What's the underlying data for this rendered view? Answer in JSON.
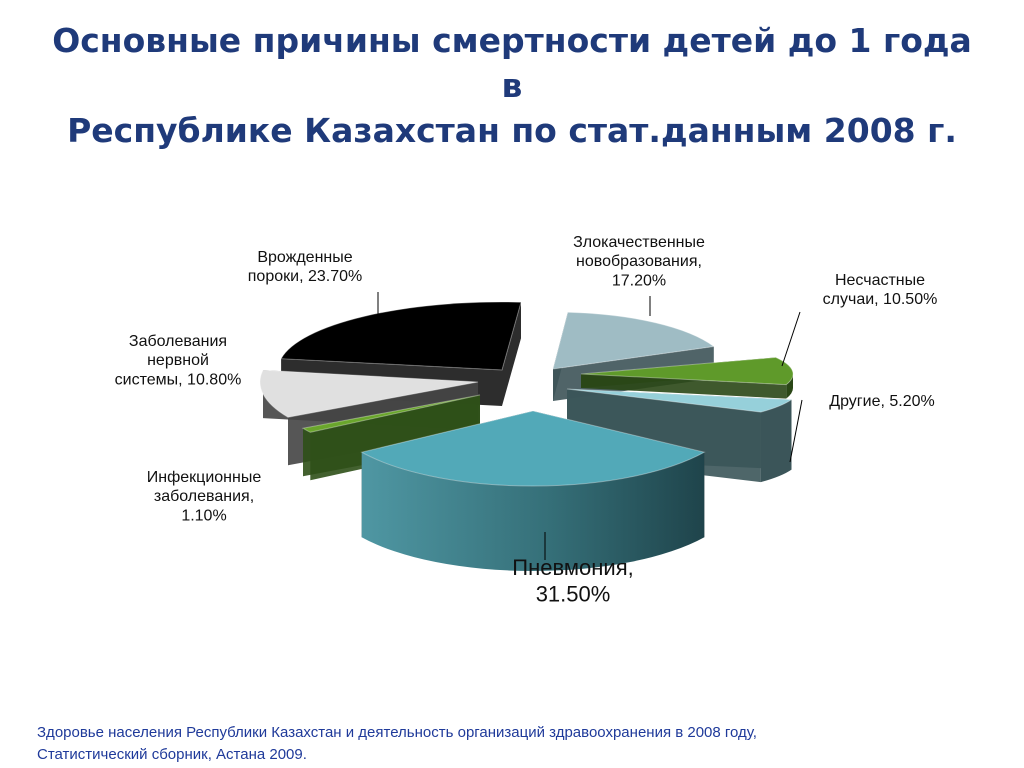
{
  "title": {
    "line1": "Основные причины смертности детей до 1 года в",
    "line2": "Республике Казахстан по стат.данным 2008 г."
  },
  "source": {
    "line1": "Здоровье  населения Республики  Казахстан и деятельность  организаций здравоохранения  в  2008 году,",
    "line2": "Статистический сборник, Астана 2009."
  },
  "colors": {
    "pneumonia": "#52a9b8",
    "cancer": "#9fbcc4",
    "accidents": "#5f9a2a",
    "other": "#96d0da",
    "congenital": "#000000",
    "nervous": "#e0e0e0",
    "infections": "#6aa62c",
    "title": "#1f3a7a"
  },
  "chart_data": {
    "type": "pie",
    "style": "3d-exploded",
    "title": "Основные причины смертности детей до 1 года в Республике Казахстан по стат.данным 2008 г.",
    "slices": [
      {
        "key": "pneumonia",
        "label": "Пневмония,|31.50%",
        "value": 31.5
      },
      {
        "key": "cancer",
        "label": "Злокачественные|новобразования,|17.20%",
        "value": 17.2
      },
      {
        "key": "accidents",
        "label": "Несчастные|случаи, 10.50%",
        "value": 10.5
      },
      {
        "key": "other",
        "label": "Другие, 5.20%",
        "value": 5.2
      },
      {
        "key": "congenital",
        "label": "Врожденные|пороки, 23.70%",
        "value": 23.7
      },
      {
        "key": "nervous",
        "label": "Заболевания|нервной|системы, 10.80%",
        "value": 10.8
      },
      {
        "key": "infections",
        "label": "Инфекционные|заболевания,|1.10%",
        "value": 1.1
      }
    ]
  }
}
